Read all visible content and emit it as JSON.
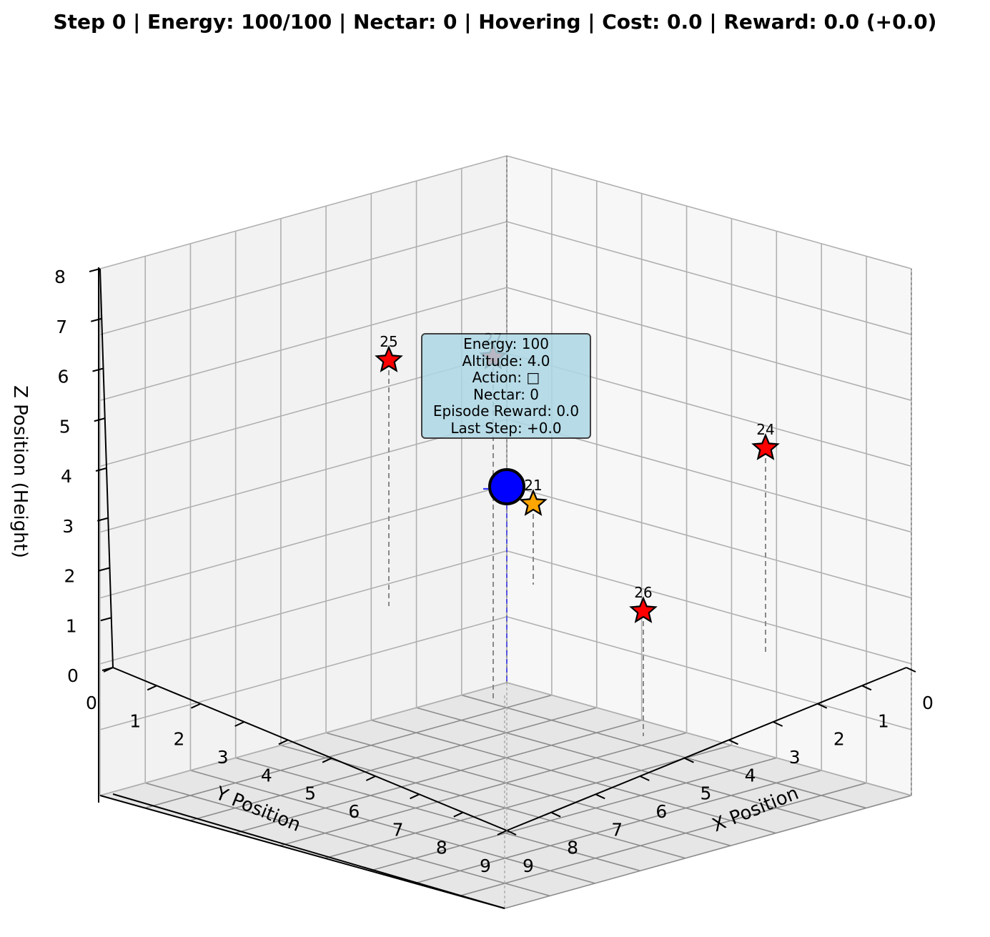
{
  "title": "Step 0 | Energy: 100/100 | Nectar: 0 | Hovering | Cost: 0.0 | Reward: 0.0 (+0.0)",
  "chart_data": {
    "type": "scatter3d",
    "title": "Step 0 | Energy: 100/100 | Nectar: 0 | Hovering | Cost: 0.0 | Reward: 0.0 (+0.0)",
    "xlabel": "X Position",
    "ylabel": "Y Position",
    "zlabel": "Z Position (Height)",
    "xlim": [
      0,
      9
    ],
    "ylim": [
      0,
      9
    ],
    "zlim": [
      0,
      8
    ],
    "x_ticks": [
      "0",
      "1",
      "2",
      "3",
      "4",
      "5",
      "6",
      "7",
      "8",
      "9"
    ],
    "y_ticks": [
      "0",
      "1",
      "2",
      "3",
      "4",
      "5",
      "6",
      "7",
      "8",
      "9"
    ],
    "z_ticks": [
      "0",
      "1",
      "2",
      "3",
      "4",
      "5",
      "6",
      "7",
      "8"
    ],
    "grid": true,
    "agent": {
      "x": 0,
      "y": 0,
      "z": 4.0,
      "color": "#0000ff"
    },
    "flowers": [
      {
        "label": "25",
        "x": 0,
        "y": 7,
        "z": 6,
        "color": "#ff0000"
      },
      {
        "label": "27",
        "x": 1,
        "y": 1,
        "z": 6,
        "color": "#ff0000"
      },
      {
        "label": "24",
        "x": 7,
        "y": 0,
        "z": 5,
        "color": "#ff0000"
      },
      {
        "label": "21",
        "x": 1,
        "y": 0,
        "z": 3.6,
        "color": "#ffa500"
      },
      {
        "label": "26",
        "x": 7,
        "y": 4,
        "z": 2.5,
        "color": "#ff0000"
      }
    ],
    "info_box": [
      "Energy: 100",
      "Altitude: 4.0",
      "Action: □",
      "Nectar: 0",
      "Episode Reward: 0.0",
      "Last Step: +0.0"
    ]
  }
}
